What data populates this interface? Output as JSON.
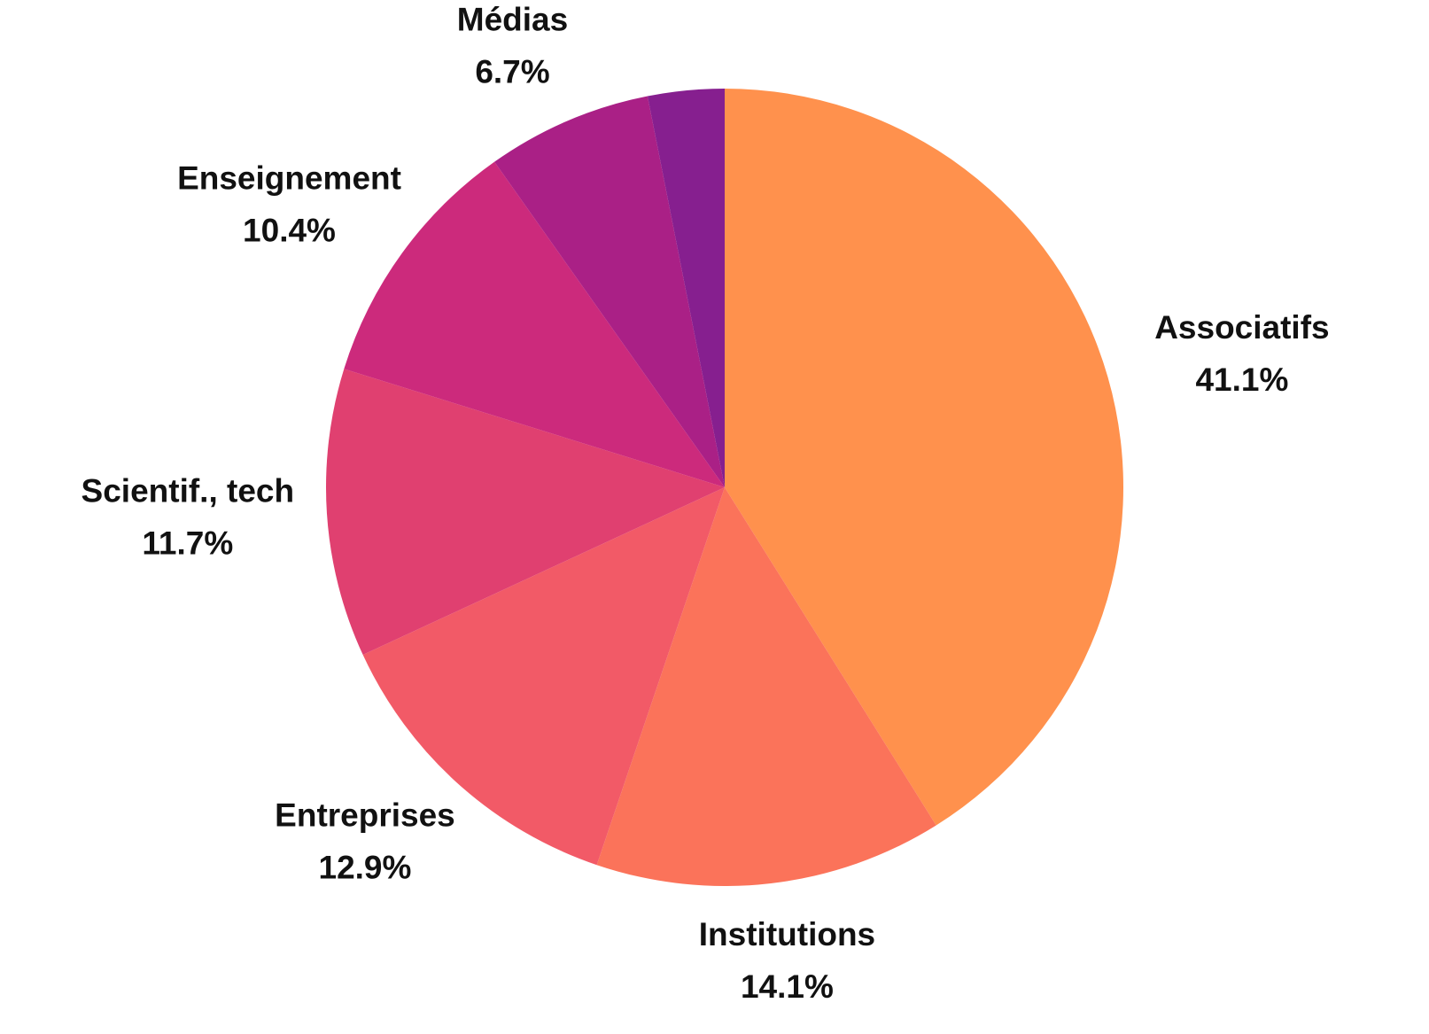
{
  "chart_data": {
    "type": "pie",
    "categories": [
      "Associatifs",
      "Institutions",
      "Entreprises",
      "Scientif., tech",
      "Enseignement",
      "Médias",
      null
    ],
    "values": [
      41.1,
      14.1,
      12.9,
      11.7,
      10.4,
      6.7,
      3.1
    ],
    "value_labels": [
      "41.1%",
      "14.1%",
      "12.9%",
      "11.7%",
      "10.4%",
      "6.7%",
      null
    ],
    "colors": [
      "#ff914d",
      "#fb735a",
      "#f25a67",
      "#e04070",
      "#cc2a7c",
      "#aa2086",
      "#861f8f"
    ]
  }
}
